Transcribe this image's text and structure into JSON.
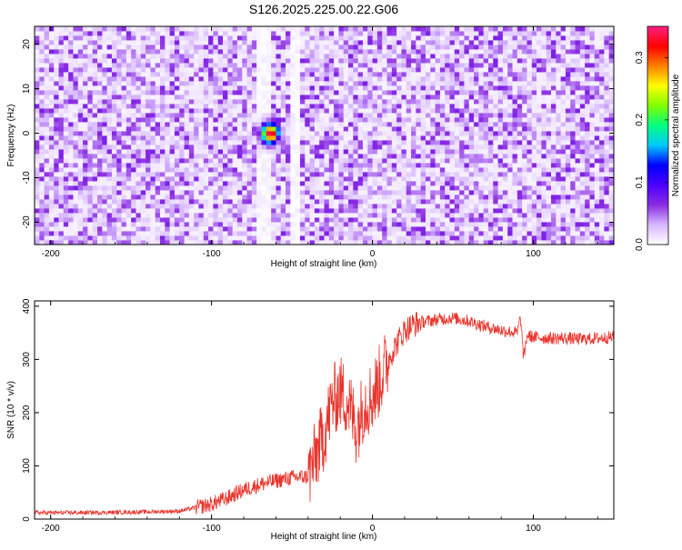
{
  "title": "S126.2025.225.00.22.G06",
  "chart_data": [
    {
      "type": "heatmap",
      "xlabel": "Height of straight line (km)",
      "ylabel": "Frequency (Hz)",
      "xlim": [
        -210,
        150
      ],
      "ylim": [
        -25,
        24
      ],
      "xticks": [
        -200,
        -100,
        0,
        100
      ],
      "yticks": [
        -20,
        -10,
        0,
        10,
        20
      ],
      "colorbar": {
        "label": "Normalized spectral amplitude",
        "range": [
          0,
          0.35
        ],
        "ticks": [
          "0.0",
          "0.1",
          "0.2",
          "0.3"
        ],
        "tick_values": [
          0,
          0.1,
          0.2,
          0.3
        ],
        "colormap": [
          "#ffffff",
          "#d7b8ff",
          "#8a2be2",
          "#4b00ff",
          "#0000ff",
          "#00c8ff",
          "#00ff80",
          "#80ff00",
          "#ffff00",
          "#ff8000",
          "#ff0000",
          "#ff2080"
        ]
      },
      "peak": {
        "x": -64,
        "y": 0,
        "value": 0.34
      },
      "background_level": 0.03
    },
    {
      "type": "line",
      "xlabel": "Height of straight line (km)",
      "ylabel": "SNR (10 * v/v)",
      "xlim": [
        -210,
        150
      ],
      "ylim": [
        0,
        410
      ],
      "xticks": [
        -200,
        -100,
        0,
        100
      ],
      "yticks": [
        0,
        100,
        200,
        300,
        400
      ],
      "line_color": "#e8342c",
      "series": [
        {
          "x": [
            -210,
            -180,
            -150,
            -120,
            -100,
            -90,
            -80,
            -70,
            -60,
            -50,
            -40,
            -35,
            -30,
            -25,
            -20,
            -15,
            -10,
            -5,
            0,
            5,
            10,
            15,
            20,
            25,
            30,
            40,
            50,
            60,
            70,
            80,
            90,
            92,
            94,
            96,
            100,
            110,
            120,
            130,
            140,
            150
          ],
          "values": [
            12,
            12,
            13,
            15,
            28,
            40,
            55,
            65,
            72,
            78,
            80,
            120,
            160,
            220,
            240,
            220,
            170,
            220,
            230,
            265,
            300,
            330,
            355,
            365,
            370,
            375,
            378,
            372,
            362,
            355,
            350,
            380,
            300,
            345,
            342,
            340,
            340,
            338,
            340,
            342
          ]
        }
      ]
    }
  ]
}
